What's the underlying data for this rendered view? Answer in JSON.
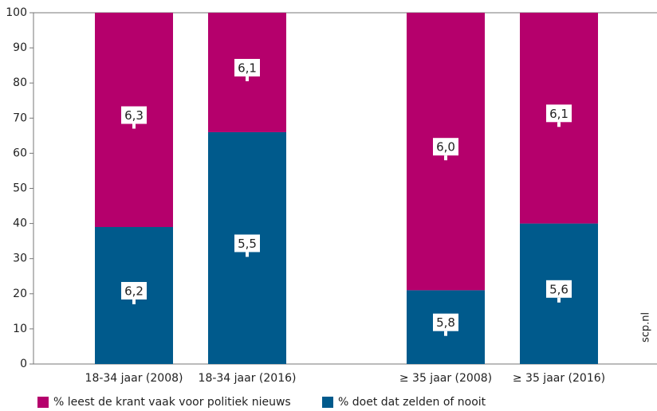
{
  "chart_data": {
    "type": "stacked-bar",
    "categories": [
      "18-34 jaar (2008)",
      "18-34 jaar (2016)",
      null,
      "≥ 35 jaar (2008)",
      "≥ 35 jaar (2016)"
    ],
    "series": [
      {
        "name": "% doet dat zelden of nooit",
        "color": "#005a8c",
        "values": [
          39,
          66,
          null,
          21,
          40
        ],
        "labels": [
          "6,2",
          "5,5",
          null,
          "5,8",
          "5,6"
        ]
      },
      {
        "name": "% leest de krant vaak voor politiek nieuws",
        "color": "#b5006c",
        "values": [
          61,
          34,
          null,
          79,
          60
        ],
        "labels": [
          "6,3",
          "6,1",
          null,
          "6,0",
          "6,1"
        ]
      }
    ],
    "ylim": [
      0,
      100
    ],
    "yticks": [
      0,
      10,
      20,
      30,
      40,
      50,
      60,
      70,
      80,
      90,
      100
    ],
    "source": "scp.nl"
  }
}
